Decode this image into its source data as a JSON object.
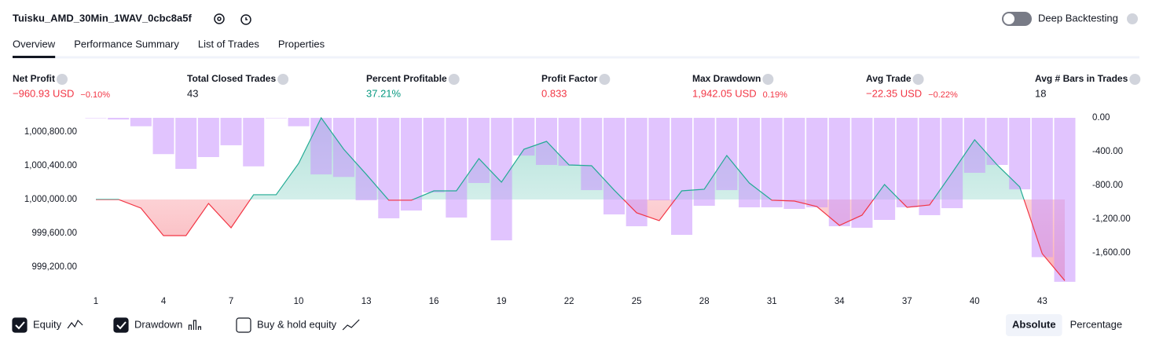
{
  "header": {
    "title": "Tuisku_AMD_30Min_1WAV_0cbc8a5f",
    "toggle_label": "Deep Backtesting"
  },
  "tabs": [
    "Overview",
    "Performance Summary",
    "List of Trades",
    "Properties"
  ],
  "metrics": [
    {
      "label": "Net Profit",
      "value": "−960.93 USD",
      "change": "−0.10%",
      "color": "#f23645"
    },
    {
      "label": "Total Closed Trades",
      "value": "43",
      "color": "#131722"
    },
    {
      "label": "Percent Profitable",
      "value": "37.21%",
      "color": "#089981"
    },
    {
      "label": "Profit Factor",
      "value": "0.833",
      "color": "#f23645"
    },
    {
      "label": "Max Drawdown",
      "value": "1,942.05 USD",
      "change": "0.19%",
      "color": "#f23645"
    },
    {
      "label": "Avg Trade",
      "value": "−22.35 USD",
      "change": "−0.22%",
      "color": "#f23645"
    },
    {
      "label": "Avg # Bars in Trades",
      "value": "18",
      "color": "#131722"
    }
  ],
  "chart_data": {
    "type": "equity-drawdown",
    "x": [
      1,
      2,
      3,
      4,
      5,
      6,
      7,
      8,
      9,
      10,
      11,
      12,
      13,
      14,
      15,
      16,
      17,
      18,
      19,
      20,
      21,
      22,
      23,
      24,
      25,
      26,
      27,
      28,
      29,
      30,
      31,
      32,
      33,
      34,
      35,
      36,
      37,
      38,
      39,
      40,
      41,
      42,
      43,
      44
    ],
    "xlim": [
      1,
      44
    ],
    "xticks": [
      1,
      4,
      7,
      10,
      13,
      16,
      19,
      22,
      25,
      28,
      31,
      34,
      37,
      40,
      43
    ],
    "series": [
      {
        "name": "Equity",
        "color": "#22ab94",
        "negative_color": "#f23645",
        "values": [
          1000000,
          1000000,
          999898,
          999572,
          999572,
          999953,
          999665,
          1000056,
          1000056,
          1000428,
          1000967,
          1000595,
          1000298,
          999991,
          999991,
          1000102,
          1000102,
          1000484,
          1000205,
          1000595,
          1000688,
          1000409,
          1000400,
          1000112,
          999842,
          999749,
          1000102,
          1000121,
          1000521,
          1000195,
          999991,
          999981,
          999916,
          999693,
          999814,
          1000177,
          999907,
          999935,
          1000316,
          1000707,
          1000409,
          1000149,
          999358,
          999039
        ]
      },
      {
        "name": "Drawdown",
        "color": "#c894fd",
        "axis": "y2",
        "values": [
          -5,
          -20,
          -100,
          -430,
          -605,
          -465,
          -325,
          -575,
          -5,
          -100,
          -670,
          -700,
          -977,
          -1190,
          -1098,
          -884,
          -1181,
          -772,
          -1451,
          -447,
          -558,
          -567,
          -856,
          -1144,
          -1284,
          -977,
          -1386,
          -1042,
          -856,
          -1060,
          -1060,
          -1079,
          -1060,
          -1284,
          -1302,
          -1209,
          -1060,
          -1153,
          -1070,
          -651,
          -558,
          -847,
          -1650,
          -1942
        ]
      }
    ],
    "ylim": [
      999014,
      1000967
    ],
    "yticks": [
      {
        "value": 999200,
        "label": "999,200.00"
      },
      {
        "value": 999600,
        "label": "999,600.00"
      },
      {
        "value": 1000000,
        "label": "1,000,000.00"
      },
      {
        "value": 1000400,
        "label": "1,000,400.00"
      },
      {
        "value": 1000800,
        "label": "1,000,800.00"
      }
    ],
    "y2lim": [
      -1953,
      0
    ],
    "y2ticks": [
      {
        "value": 0,
        "label": "0.00"
      },
      {
        "value": -400,
        "label": "-400.00"
      },
      {
        "value": -800,
        "label": "-800.00"
      },
      {
        "value": -1200,
        "label": "-1,200.00"
      },
      {
        "value": -1600,
        "label": "-1,600.00"
      }
    ]
  },
  "footer": {
    "options": [
      {
        "label": "Equity",
        "checked": true
      },
      {
        "label": "Drawdown",
        "checked": true
      },
      {
        "label": "Buy & hold equity",
        "checked": false
      }
    ],
    "modes": [
      "Absolute",
      "Percentage"
    ],
    "active_mode": 0
  }
}
